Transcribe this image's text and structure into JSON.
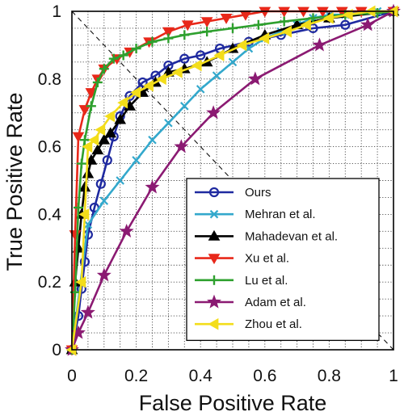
{
  "chart_data": {
    "type": "line",
    "title": "",
    "xlabel": "False Positive Rate",
    "ylabel": "True Positive Rate",
    "xlim": [
      0,
      1
    ],
    "ylim": [
      0,
      1
    ],
    "x_ticks": [
      "0",
      "0.2",
      "0.4",
      "0.6",
      "0.8",
      "1"
    ],
    "y_ticks": [
      "0",
      "0.2",
      "0.4",
      "0.6",
      "0.8",
      "1"
    ],
    "grid": true,
    "grid_style": "dotted",
    "minor_grid_step": 0.05,
    "diagonal": "dashed line from (0,1) to (1,0)",
    "legend_position": "bottom-right",
    "series": [
      {
        "name": "Ours",
        "color": "#1f2aa0",
        "marker": "circle-open",
        "x": [
          0,
          0.02,
          0.03,
          0.04,
          0.05,
          0.07,
          0.09,
          0.11,
          0.13,
          0.15,
          0.18,
          0.22,
          0.26,
          0.3,
          0.35,
          0.4,
          0.46,
          0.55,
          0.65,
          0.75,
          0.85,
          1.0
        ],
        "y": [
          0,
          0.1,
          0.18,
          0.26,
          0.34,
          0.42,
          0.49,
          0.56,
          0.63,
          0.69,
          0.75,
          0.79,
          0.81,
          0.84,
          0.86,
          0.87,
          0.89,
          0.91,
          0.93,
          0.95,
          0.96,
          1.0
        ]
      },
      {
        "name": "Mehran et al.",
        "color": "#33a8cc",
        "marker": "x",
        "x": [
          0,
          0.05,
          0.1,
          0.15,
          0.2,
          0.25,
          0.3,
          0.35,
          0.4,
          0.45,
          0.5,
          0.55,
          0.6,
          0.65,
          0.7,
          0.75,
          0.8,
          0.85,
          0.9,
          0.95,
          1.0
        ],
        "y": [
          0,
          0.37,
          0.44,
          0.5,
          0.56,
          0.62,
          0.67,
          0.72,
          0.77,
          0.81,
          0.85,
          0.89,
          0.92,
          0.94,
          0.96,
          0.98,
          0.99,
          0.99,
          1.0,
          1.0,
          1.0
        ]
      },
      {
        "name": "Mahadevan et al.",
        "color": "#000000",
        "marker": "triangle-up",
        "x": [
          0,
          0.01,
          0.02,
          0.03,
          0.04,
          0.05,
          0.06,
          0.08,
          0.1,
          0.12,
          0.15,
          0.18,
          0.22,
          0.26,
          0.3,
          0.35,
          0.42,
          0.5,
          0.6,
          0.7,
          0.8,
          1.0
        ],
        "y": [
          0,
          0.2,
          0.3,
          0.4,
          0.48,
          0.52,
          0.56,
          0.59,
          0.62,
          0.64,
          0.68,
          0.72,
          0.76,
          0.79,
          0.82,
          0.83,
          0.85,
          0.89,
          0.93,
          0.96,
          0.98,
          1.0
        ]
      },
      {
        "name": "Xu et al.",
        "color": "#e8281a",
        "marker": "triangle-down",
        "x": [
          0,
          0.01,
          0.02,
          0.04,
          0.06,
          0.08,
          0.1,
          0.14,
          0.18,
          0.24,
          0.3,
          0.36,
          0.42,
          0.48,
          0.54,
          0.6,
          0.66,
          0.72,
          0.78,
          0.84,
          0.9,
          1.0
        ],
        "y": [
          0,
          0.34,
          0.63,
          0.71,
          0.76,
          0.8,
          0.83,
          0.86,
          0.88,
          0.91,
          0.94,
          0.96,
          0.97,
          0.98,
          0.99,
          1.0,
          1.0,
          1.0,
          1.0,
          1.0,
          1.0,
          1.0
        ]
      },
      {
        "name": "Lu et al.",
        "color": "#2ea02e",
        "marker": "plus",
        "x": [
          0,
          0.01,
          0.02,
          0.03,
          0.04,
          0.06,
          0.08,
          0.1,
          0.13,
          0.16,
          0.2,
          0.25,
          0.3,
          0.35,
          0.42,
          0.5,
          0.58,
          0.66,
          0.75,
          0.85,
          0.95,
          1.0
        ],
        "y": [
          0,
          0.17,
          0.42,
          0.55,
          0.62,
          0.72,
          0.79,
          0.83,
          0.86,
          0.87,
          0.89,
          0.91,
          0.92,
          0.93,
          0.94,
          0.95,
          0.96,
          0.97,
          0.98,
          0.99,
          0.995,
          1.0
        ]
      },
      {
        "name": "Adam et al.",
        "color": "#8b1a72",
        "marker": "star",
        "x": [
          0,
          0.02,
          0.05,
          0.1,
          0.17,
          0.25,
          0.34,
          0.44,
          0.57,
          0.77,
          0.92,
          1.0
        ],
        "y": [
          0,
          0.05,
          0.11,
          0.22,
          0.35,
          0.48,
          0.6,
          0.7,
          0.8,
          0.9,
          0.96,
          1.0
        ]
      },
      {
        "name": "Zhou et al.",
        "color": "#f3dd1a",
        "marker": "triangle-left",
        "x": [
          0,
          0.03,
          0.04,
          0.05,
          0.07,
          0.09,
          0.12,
          0.16,
          0.2,
          0.24,
          0.28,
          0.33,
          0.39,
          0.46,
          0.53,
          0.6,
          0.67,
          0.73,
          0.8,
          0.86,
          0.93,
          1.0
        ],
        "y": [
          0,
          0.2,
          0.4,
          0.6,
          0.62,
          0.65,
          0.69,
          0.73,
          0.76,
          0.78,
          0.8,
          0.82,
          0.84,
          0.87,
          0.9,
          0.92,
          0.94,
          0.96,
          0.98,
          0.99,
          1.0,
          1.0
        ]
      }
    ]
  }
}
